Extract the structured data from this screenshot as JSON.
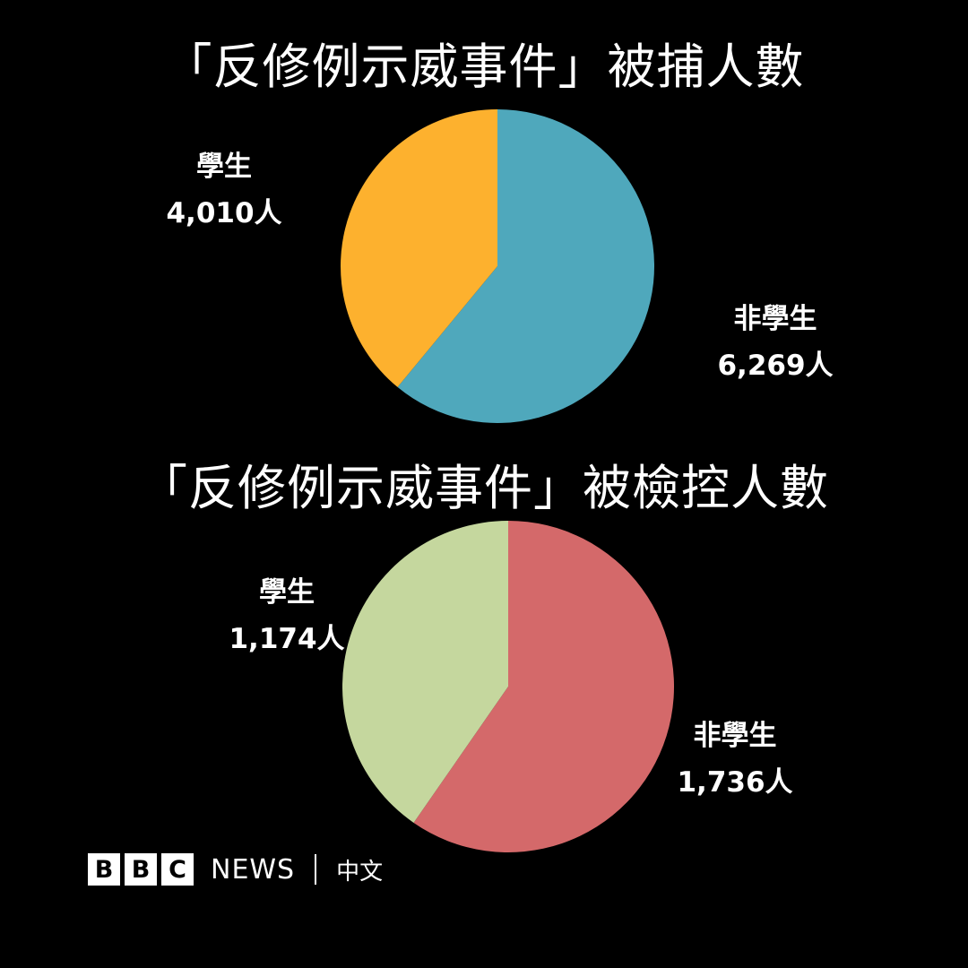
{
  "chart_data": [
    {
      "type": "pie",
      "title": "「反修例示威事件」被捕人數",
      "slices": [
        {
          "name": "非學生",
          "value": 6269,
          "value_label": "6,269人",
          "color": "#4FA8BC"
        },
        {
          "name": "學生",
          "value": 4010,
          "value_label": "4,010人",
          "color": "#FDB12E"
        }
      ],
      "start": "12 o'clock",
      "direction": "clockwise"
    },
    {
      "type": "pie",
      "title": "「反修例示威事件」被檢控人數",
      "slices": [
        {
          "name": "非學生",
          "value": 1736,
          "value_label": "1,736人",
          "color": "#D4696A"
        },
        {
          "name": "學生",
          "value": 1174,
          "value_label": "1,174人",
          "color": "#C5D79E"
        }
      ],
      "start": "12 o'clock",
      "direction": "clockwise"
    }
  ],
  "branding": {
    "bbc_letters": [
      "B",
      "B",
      "C"
    ],
    "news": "NEWS",
    "language": "中文"
  }
}
